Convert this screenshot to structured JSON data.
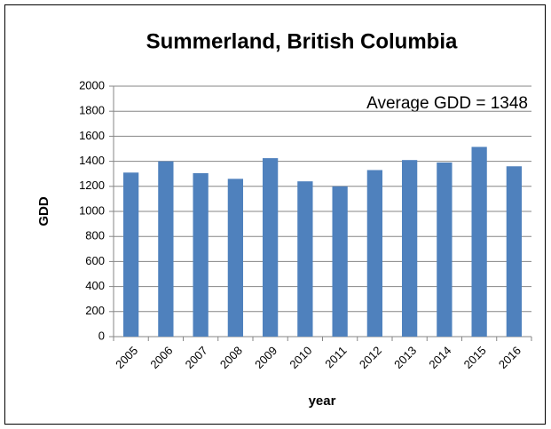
{
  "chart_data": {
    "type": "bar",
    "title": "Summerland, British Columbia",
    "annotation": "Average GDD  =  1348",
    "xlabel": "year",
    "ylabel": "GDD",
    "categories": [
      "2005",
      "2006",
      "2007",
      "2008",
      "2009",
      "2010",
      "2011",
      "2012",
      "2013",
      "2014",
      "2015",
      "2016"
    ],
    "values": [
      1310,
      1400,
      1305,
      1260,
      1425,
      1240,
      1200,
      1330,
      1410,
      1390,
      1515,
      1360
    ],
    "color": "#4f81bd",
    "ylim": [
      0,
      2000
    ],
    "yticks": [
      0,
      200,
      400,
      600,
      800,
      1000,
      1200,
      1400,
      1600,
      1800,
      2000
    ],
    "grid": true
  }
}
